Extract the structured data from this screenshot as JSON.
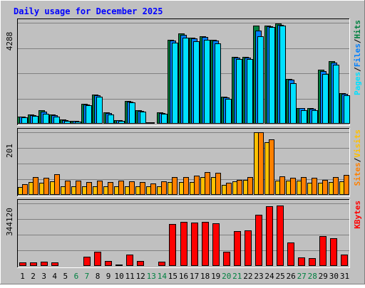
{
  "chart_data": {
    "type": "bar",
    "title": "Daily usage for December 2025",
    "grid": true,
    "days": [
      "1",
      "2",
      "3",
      "4",
      "5",
      "6",
      "7",
      "8",
      "9",
      "10",
      "11",
      "12",
      "13",
      "14",
      "15",
      "16",
      "17",
      "18",
      "19",
      "20",
      "21",
      "22",
      "23",
      "24",
      "25",
      "26",
      "27",
      "28",
      "29",
      "30",
      "31"
    ],
    "weekend_days": [
      "6",
      "7",
      "13",
      "14",
      "20",
      "21",
      "27",
      "28"
    ],
    "panels": [
      {
        "name": "hits-files-pages",
        "ymax_label": "4288",
        "ymax": 4288,
        "legend": [
          "Pages",
          "Files",
          "Hits"
        ],
        "legend_separator": "/",
        "series": [
          {
            "name": "Hits",
            "color": "#008040",
            "values": [
              300,
              380,
              560,
              390,
              180,
              120,
              840,
              1230,
              480,
              160,
              970,
              560,
              60,
              480,
              3560,
              3820,
              3660,
              3710,
              3560,
              1140,
              2850,
              2850,
              4180,
              4180,
              4260,
              1910,
              670,
              650,
              2280,
              2650,
              1290
            ]
          },
          {
            "name": "Files",
            "color": "#0080ff",
            "values": [
              290,
              360,
              520,
              360,
              160,
              110,
              830,
              1200,
              450,
              150,
              940,
              540,
              50,
              460,
              3530,
              3770,
              3620,
              3680,
              3520,
              1120,
              2820,
              2800,
              3960,
              4150,
              4210,
              1880,
              650,
              640,
              2240,
              2610,
              1260
            ]
          },
          {
            "name": "Pages",
            "color": "#00e0ff",
            "values": [
              260,
              320,
              420,
              310,
              110,
              80,
              800,
              1150,
              400,
              120,
              900,
              500,
              40,
              420,
              3440,
              3640,
              3500,
              3570,
              3410,
              1060,
              2750,
              2740,
              3700,
              4110,
              4180,
              1720,
              580,
              580,
              2120,
              2520,
              1200
            ]
          }
        ]
      },
      {
        "name": "visits-sites",
        "ymax_label": "201",
        "ymax": 201,
        "legend": [
          "Sites",
          "Visits"
        ],
        "legend_separator": "/",
        "series": [
          {
            "name": "Visits",
            "color": "#ffc000",
            "values": [
              24,
              40,
              39,
              44,
              28,
              28,
              28,
              28,
              28,
              28,
              28,
              28,
              28,
              28,
              40,
              40,
              40,
              56,
              56,
              32,
              44,
              48,
              201,
              168,
              45,
              45,
              45,
              39,
              38,
              42,
              44
            ]
          },
          {
            "name": "Sites",
            "color": "#ff8000",
            "values": [
              34,
              58,
              54,
              66,
              45,
              45,
              42,
              45,
              42,
              45,
              44,
              42,
              36,
              44,
              56,
              58,
              62,
              73,
              70,
              38,
              49,
              56,
              200,
              178,
              60,
              54,
              56,
              54,
              48,
              56,
              64
            ]
          }
        ]
      },
      {
        "name": "kbytes",
        "ymax_label": "344120",
        "ymax": 344120,
        "legend": [
          "KBytes"
        ],
        "legend_separator": "",
        "series": [
          {
            "name": "KBytes",
            "color": "#ff0000",
            "values": [
              18000,
              20000,
              24000,
              19000,
              4000,
              4000,
              50000,
              78000,
              28000,
              9000,
              62000,
              28000,
              3000,
              24000,
              232000,
              244000,
              240000,
              244000,
              236000,
              80000,
              192000,
              194000,
              280000,
              330000,
              334000,
              130000,
              46000,
              44000,
              164000,
              154000,
              62000
            ]
          }
        ]
      }
    ]
  },
  "colors": {
    "background": "#c0c0c0",
    "plot_background": "#c0c0c0",
    "title_text": "#0000ff",
    "axis_text": "#000000",
    "weekday_text": "#000000",
    "weekend_text": "#008040",
    "gridline": "#808080",
    "bevel_light": "#ffffff",
    "bevel_dark": "#808080"
  }
}
